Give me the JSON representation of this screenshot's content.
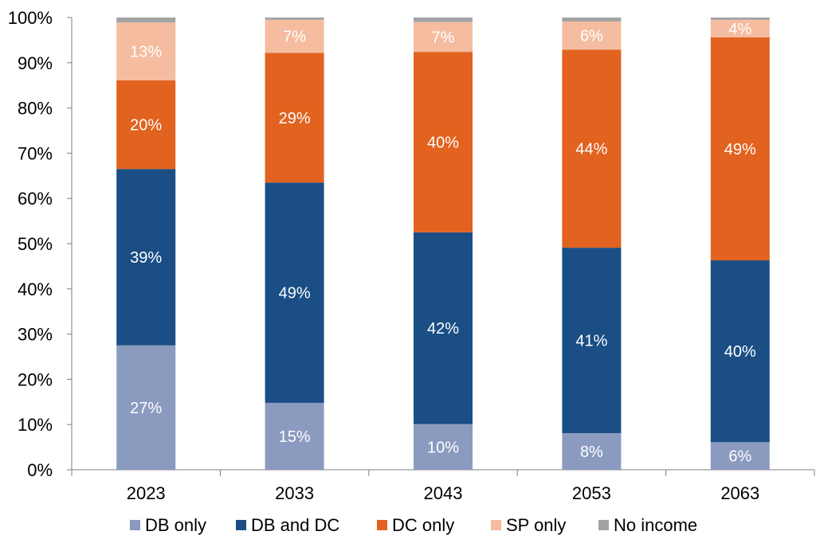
{
  "chart_data": {
    "type": "bar",
    "stacked": true,
    "title": "",
    "xlabel": "",
    "ylabel": "",
    "ylim": [
      0,
      100
    ],
    "y_ticks": [
      "0%",
      "10%",
      "20%",
      "30%",
      "40%",
      "50%",
      "60%",
      "70%",
      "80%",
      "90%",
      "100%"
    ],
    "categories": [
      "2023",
      "2033",
      "2043",
      "2053",
      "2063"
    ],
    "legend_position": "bottom",
    "series": [
      {
        "name": "DB only",
        "color": "#8b9abf",
        "label_color": "#ffffff",
        "values": [
          27.5,
          14.8,
          10.1,
          8.1,
          6.1
        ],
        "labels": [
          "27%",
          "15%",
          "10%",
          "8%",
          "6%"
        ]
      },
      {
        "name": "DB and DC",
        "color": "#1a4e85",
        "label_color": "#ffffff",
        "values": [
          39.0,
          48.7,
          42.4,
          41.0,
          40.2
        ],
        "labels": [
          "39%",
          "49%",
          "42%",
          "41%",
          "40%"
        ]
      },
      {
        "name": "DC only",
        "color": "#e2621f",
        "label_color": "#ffffff",
        "values": [
          19.6,
          28.7,
          39.9,
          43.8,
          49.3
        ],
        "labels": [
          "20%",
          "29%",
          "40%",
          "44%",
          "49%"
        ]
      },
      {
        "name": "SP only",
        "color": "#f5bca0",
        "label_color": "#ffffff",
        "values": [
          12.8,
          7.3,
          6.6,
          6.2,
          3.9
        ],
        "labels": [
          "13%",
          "7%",
          "7%",
          "6%",
          "4%"
        ]
      },
      {
        "name": "No income",
        "color": "#a3a3a3",
        "label_color": "#ffffff",
        "values": [
          1.1,
          0.5,
          1.0,
          0.9,
          0.5
        ],
        "labels": [
          "",
          "",
          "",
          "",
          ""
        ]
      }
    ]
  }
}
